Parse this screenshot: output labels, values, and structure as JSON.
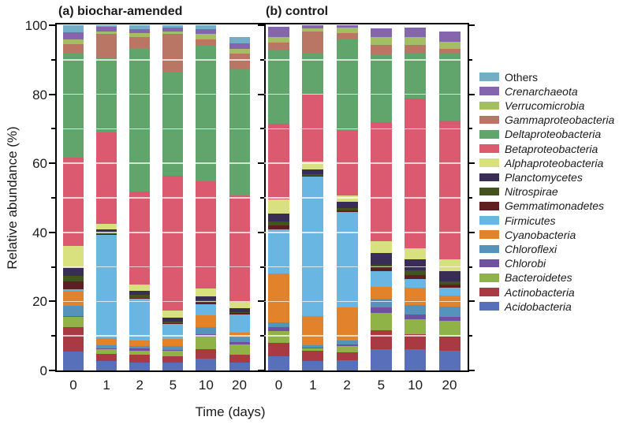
{
  "figure": {
    "y_axis_label": "Relative abundance (%)",
    "x_axis_label": "Time (days)",
    "panel_a_title": "(a) biochar-amended",
    "panel_b_title": "(b) control"
  },
  "chart_data": {
    "type": "bar",
    "stacked": true,
    "grid": "white horizontal lines every 10%",
    "legend_position": "right",
    "ylabel": "Relative abundance (%)",
    "xlabel": "Time (days)",
    "ylim": [
      0,
      100
    ],
    "y_major_ticks": [
      0,
      20,
      40,
      60,
      80,
      100
    ],
    "y_minor_ticks": [
      10,
      30,
      50,
      70,
      90
    ],
    "categories": [
      "0",
      "1",
      "2",
      "5",
      "10",
      "20"
    ],
    "panels": [
      {
        "key": "a",
        "title": "(a) biochar-amended"
      },
      {
        "key": "b",
        "title": "(b) control"
      }
    ],
    "legend_top_to_bottom": [
      "Others",
      "Crenarchaeota",
      "Verrucomicrobia",
      "Gammaproteobacteria",
      "Deltaproteobacteria",
      "Betaproteobacteria",
      "Alphaproteobacteria",
      "Planctomycetes",
      "Nitrospirae",
      "Gemmatimonadetes",
      "Firmicutes",
      "Cyanobacteria",
      "Chloroflexi",
      "Chlorobi",
      "Bacteroidetes",
      "Actinobacteria",
      "Acidobacteria"
    ],
    "non_italic_legend_labels": [
      "Others"
    ],
    "series_bottom_to_top": [
      {
        "name": "Acidobacteria",
        "color": "#5870B9",
        "values_a": [
          5.5,
          2.7,
          2.3,
          2.3,
          3.4,
          2.3
        ],
        "values_b": [
          4.2,
          2.7,
          3.0,
          6.1,
          6.1,
          5.7
        ]
      },
      {
        "name": "Actinobacteria",
        "color": "#A93A43",
        "values_a": [
          7.0,
          2.2,
          2.2,
          1.9,
          2.7,
          2.2
        ],
        "values_b": [
          3.8,
          3.0,
          2.3,
          5.6,
          4.5,
          4.2
        ]
      },
      {
        "name": "Bacteroidetes",
        "color": "#8FB347",
        "values_a": [
          3.0,
          1.2,
          1.2,
          1.5,
          3.8,
          3.1
        ],
        "values_b": [
          3.4,
          0.8,
          1.9,
          5.0,
          4.2,
          4.5
        ]
      },
      {
        "name": "Chlorobi",
        "color": "#6F50A1",
        "values_a": [
          0.2,
          0.2,
          0.7,
          0.3,
          0.7,
          0.7
        ],
        "values_b": [
          1.1,
          0.2,
          0.3,
          1.5,
          1.5,
          1.1
        ]
      },
      {
        "name": "Chloroflexi",
        "color": "#5593BB",
        "values_a": [
          3.0,
          1.1,
          0.8,
          1.2,
          1.9,
          1.2
        ],
        "values_b": [
          1.5,
          0.7,
          1.2,
          2.6,
          2.7,
          3.1
        ]
      },
      {
        "name": "Cyanobacteria",
        "color": "#E2832C",
        "values_a": [
          4.3,
          1.9,
          1.5,
          1.9,
          3.4,
          1.5
        ],
        "values_b": [
          14.0,
          8.3,
          9.5,
          3.4,
          4.9,
          3.0
        ]
      },
      {
        "name": "Firmicutes",
        "color": "#69B6E3",
        "values_a": [
          0.6,
          30.0,
          12.1,
          4.4,
          3.4,
          5.3
        ],
        "values_b": [
          12.9,
          40.5,
          27.8,
          4.6,
          2.7,
          2.3
        ]
      },
      {
        "name": "Gemmatimonadetes",
        "color": "#5F1E20",
        "values_a": [
          2.3,
          0.3,
          0.3,
          0.2,
          0.3,
          0.3
        ],
        "values_b": [
          1.1,
          0.3,
          0.3,
          1.1,
          1.1,
          1.1
        ]
      },
      {
        "name": "Nitrospirae",
        "color": "#45521D",
        "values_a": [
          1.6,
          0.3,
          0.8,
          0.5,
          0.8,
          0.3
        ],
        "values_b": [
          1.2,
          0.3,
          0.8,
          0.8,
          1.2,
          0.8
        ]
      },
      {
        "name": "Planctomycetes",
        "color": "#372D55",
        "values_a": [
          2.2,
          1.0,
          1.1,
          1.2,
          1.1,
          1.1
        ],
        "values_b": [
          2.3,
          1.5,
          1.8,
          3.4,
          3.4,
          3.0
        ]
      },
      {
        "name": "Alphaproteobacteria",
        "color": "#D9E07E",
        "values_a": [
          6.5,
          1.5,
          2.0,
          1.9,
          2.3,
          1.9
        ],
        "values_b": [
          4.1,
          2.3,
          1.9,
          3.4,
          3.0,
          3.4
        ]
      },
      {
        "name": "Betaproteobacteria",
        "color": "#DC5A6F",
        "values_a": [
          25.5,
          26.5,
          26.8,
          39.2,
          31.0,
          30.7
        ],
        "values_b": [
          21.9,
          19.4,
          18.6,
          34.5,
          43.6,
          40.2
        ]
      },
      {
        "name": "Deltaproteobacteria",
        "color": "#61A46C",
        "values_a": [
          30.3,
          21.5,
          41.7,
          30.0,
          39.2,
          36.7
        ],
        "values_b": [
          21.5,
          12.1,
          26.5,
          19.6,
          12.8,
          19.3
        ]
      },
      {
        "name": "Gammaproteobacteria",
        "color": "#B97665",
        "values_a": [
          2.5,
          7.0,
          3.0,
          11.0,
          2.0,
          4.4
        ],
        "values_b": [
          2.0,
          6.0,
          1.9,
          2.7,
          2.7,
          1.4
        ]
      },
      {
        "name": "Verrucomicrobia",
        "color": "#A4BE66",
        "values_a": [
          1.5,
          0.8,
          1.3,
          0.8,
          1.5,
          1.5
        ],
        "values_b": [
          1.5,
          1.1,
          1.5,
          2.2,
          2.2,
          2.1
        ]
      },
      {
        "name": "Crenarchaeota",
        "color": "#8565AE",
        "values_a": [
          2.0,
          1.3,
          1.2,
          1.0,
          1.3,
          1.5
        ],
        "values_b": [
          3.0,
          0.8,
          0.7,
          2.7,
          2.7,
          3.0
        ]
      },
      {
        "name": "Others",
        "color": "#74AEC6",
        "values_a": [
          2.0,
          0.5,
          1.0,
          0.7,
          1.2,
          1.9
        ],
        "values_b": [
          0.0,
          0.0,
          0.0,
          0.0,
          0.0,
          0.0
        ]
      }
    ]
  }
}
